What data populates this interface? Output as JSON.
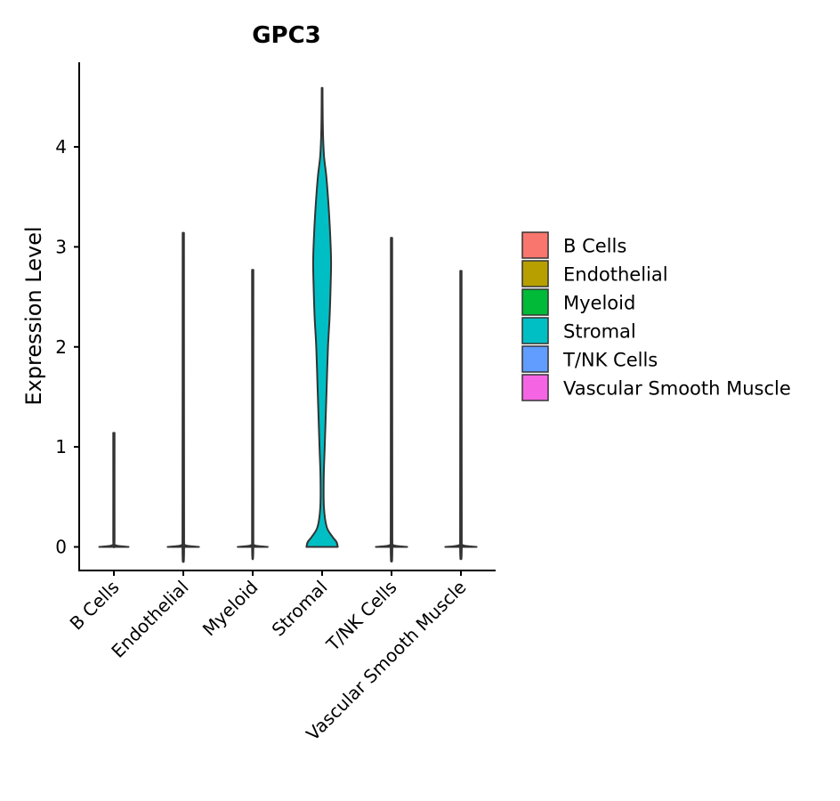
{
  "chart_data": {
    "type": "violin",
    "title": "GPC3",
    "xlabel": "",
    "ylabel": "Expression Level",
    "ylim": [
      -0.23,
      4.85
    ],
    "yticks": [
      0,
      1,
      2,
      3,
      4
    ],
    "categories": [
      "B Cells",
      "Endothelial",
      "Myeloid",
      "Stromal",
      "T/NK Cells",
      "Vascular Smooth Muscle"
    ],
    "colors": [
      "#F8766D",
      "#B79F00",
      "#00BA38",
      "#00BFC4",
      "#619CFF",
      "#F564E3"
    ],
    "outline_color": "#333333",
    "series": [
      {
        "name": "B Cells",
        "max": 1.14,
        "profile": [
          [
            0,
            0.45
          ],
          [
            0.02,
            0.03
          ],
          [
            0.1,
            0.02
          ],
          [
            1.14,
            0.02
          ]
        ]
      },
      {
        "name": "Endothelial",
        "max": 3.14,
        "profile": [
          [
            0,
            0.48
          ],
          [
            0.02,
            0.04
          ],
          [
            0.1,
            0.025
          ],
          [
            3.14,
            0.02
          ]
        ]
      },
      {
        "name": "Myeloid",
        "max": 2.77,
        "profile": [
          [
            0,
            0.46
          ],
          [
            0.02,
            0.03
          ],
          [
            0.1,
            0.02
          ],
          [
            2.77,
            0.02
          ]
        ]
      },
      {
        "name": "Stromal",
        "max": 4.59,
        "profile": [
          [
            0,
            0.48
          ],
          [
            0.05,
            0.44
          ],
          [
            0.1,
            0.32
          ],
          [
            0.2,
            0.14
          ],
          [
            0.4,
            0.055
          ],
          [
            0.7,
            0.05
          ],
          [
            1.0,
            0.08
          ],
          [
            1.3,
            0.11
          ],
          [
            1.6,
            0.14
          ],
          [
            2.0,
            0.18
          ],
          [
            2.3,
            0.23
          ],
          [
            2.6,
            0.26
          ],
          [
            2.85,
            0.275
          ],
          [
            3.1,
            0.25
          ],
          [
            3.4,
            0.2
          ],
          [
            3.7,
            0.13
          ],
          [
            3.9,
            0.06
          ],
          [
            4.1,
            0.03
          ],
          [
            4.3,
            0.018
          ],
          [
            4.59,
            0.012
          ]
        ]
      },
      {
        "name": "T/NK Cells",
        "max": 3.09,
        "profile": [
          [
            0,
            0.48
          ],
          [
            0.02,
            0.04
          ],
          [
            0.1,
            0.025
          ],
          [
            3.09,
            0.02
          ]
        ]
      },
      {
        "name": "Vascular Smooth Muscle",
        "max": 2.76,
        "profile": [
          [
            0,
            0.48
          ],
          [
            0.02,
            0.04
          ],
          [
            0.1,
            0.025
          ],
          [
            2.76,
            0.02
          ]
        ]
      }
    ],
    "legend": {
      "position": "right",
      "items": [
        "B Cells",
        "Endothelial",
        "Myeloid",
        "Stromal",
        "T/NK Cells",
        "Vascular Smooth Muscle"
      ]
    }
  }
}
